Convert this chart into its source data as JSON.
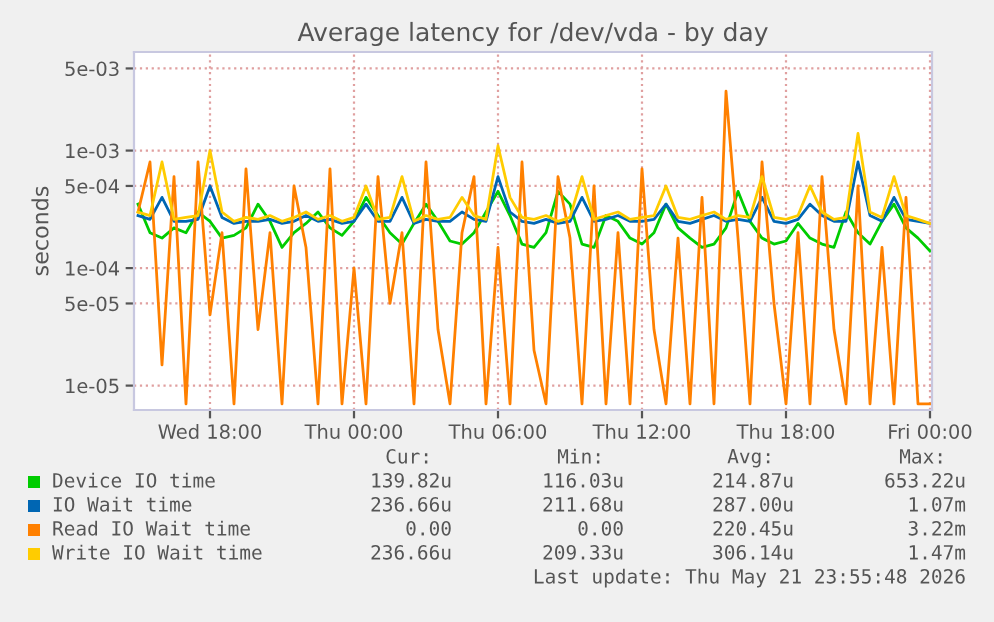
{
  "chart_data": {
    "type": "line",
    "title": "Average latency for /dev/vda - by day",
    "ylabel": "seconds",
    "log": "y",
    "ylim": [
      6.2e-06,
      0.0069
    ],
    "yticks": [
      {
        "value": 1e-05,
        "label": "1e-05"
      },
      {
        "value": 5e-05,
        "label": "5e-05"
      },
      {
        "value": 0.0001,
        "label": "1e-04"
      },
      {
        "value": 0.0005,
        "label": "5e-04"
      },
      {
        "value": 0.001,
        "label": "1e-03"
      },
      {
        "value": 0.005,
        "label": "5e-03"
      }
    ],
    "xlim": [
      "2026-05-20T14:50",
      "2026-05-22T00:05"
    ],
    "xticks": [
      {
        "value": "2026-05-20T18:00",
        "label": "Wed 18:00"
      },
      {
        "value": "2026-05-21T00:00",
        "label": "Thu 00:00"
      },
      {
        "value": "2026-05-21T06:00",
        "label": "Thu 06:00"
      },
      {
        "value": "2026-05-21T12:00",
        "label": "Thu 12:00"
      },
      {
        "value": "2026-05-21T18:00",
        "label": "Thu 18:00"
      },
      {
        "value": "2026-05-22T00:00",
        "label": "Fri 00:00"
      }
    ],
    "grid": true,
    "legend": "bottom",
    "line_style": "solid",
    "marker": "none",
    "x": [
      "2026-05-20T15:00",
      "2026-05-20T15:30",
      "2026-05-20T16:00",
      "2026-05-20T16:30",
      "2026-05-20T17:00",
      "2026-05-20T17:30",
      "2026-05-20T18:00",
      "2026-05-20T18:30",
      "2026-05-20T19:00",
      "2026-05-20T19:30",
      "2026-05-20T20:00",
      "2026-05-20T20:30",
      "2026-05-20T21:00",
      "2026-05-20T21:30",
      "2026-05-20T22:00",
      "2026-05-20T22:30",
      "2026-05-20T23:00",
      "2026-05-20T23:30",
      "2026-05-21T00:00",
      "2026-05-21T00:30",
      "2026-05-21T01:00",
      "2026-05-21T01:30",
      "2026-05-21T02:00",
      "2026-05-21T02:30",
      "2026-05-21T03:00",
      "2026-05-21T03:30",
      "2026-05-21T04:00",
      "2026-05-21T04:30",
      "2026-05-21T05:00",
      "2026-05-21T05:30",
      "2026-05-21T06:00",
      "2026-05-21T06:30",
      "2026-05-21T07:00",
      "2026-05-21T07:30",
      "2026-05-21T08:00",
      "2026-05-21T08:30",
      "2026-05-21T09:00",
      "2026-05-21T09:30",
      "2026-05-21T10:00",
      "2026-05-21T10:30",
      "2026-05-21T11:00",
      "2026-05-21T11:30",
      "2026-05-21T12:00",
      "2026-05-21T12:30",
      "2026-05-21T13:00",
      "2026-05-21T13:30",
      "2026-05-21T14:00",
      "2026-05-21T14:30",
      "2026-05-21T15:00",
      "2026-05-21T15:30",
      "2026-05-21T16:00",
      "2026-05-21T16:30",
      "2026-05-21T17:00",
      "2026-05-21T17:30",
      "2026-05-21T18:00",
      "2026-05-21T18:30",
      "2026-05-21T19:00",
      "2026-05-21T19:30",
      "2026-05-21T20:00",
      "2026-05-21T20:30",
      "2026-05-21T21:00",
      "2026-05-21T21:30",
      "2026-05-21T22:00",
      "2026-05-21T22:30",
      "2026-05-21T23:00",
      "2026-05-21T23:30",
      "2026-05-22T00:00"
    ],
    "series": [
      {
        "name": "Device IO time",
        "color": "#00cc00",
        "values": [
          0.00035,
          0.0002,
          0.00018,
          0.00022,
          0.0002,
          0.0003,
          0.00025,
          0.00018,
          0.00019,
          0.00022,
          0.00035,
          0.00025,
          0.00015,
          0.0002,
          0.00024,
          0.0003,
          0.00022,
          0.00019,
          0.00025,
          0.0004,
          0.00028,
          0.0002,
          0.00016,
          0.00024,
          0.00035,
          0.00025,
          0.00017,
          0.00016,
          0.0002,
          0.0003,
          0.00045,
          0.00028,
          0.00016,
          0.00015,
          0.0002,
          0.00045,
          0.00035,
          0.00016,
          0.00015,
          0.00028,
          0.00025,
          0.00018,
          0.00016,
          0.0002,
          0.00035,
          0.00022,
          0.00018,
          0.00015,
          0.00016,
          0.00022,
          0.00045,
          0.00025,
          0.00018,
          0.00016,
          0.00017,
          0.00024,
          0.00018,
          0.00016,
          0.00015,
          0.0003,
          0.0002,
          0.00016,
          0.00025,
          0.00035,
          0.00022,
          0.00018,
          0.00014
        ]
      },
      {
        "name": "IO Wait time",
        "color": "#0066b3",
        "values": [
          0.00028,
          0.00026,
          0.0004,
          0.00025,
          0.00025,
          0.00026,
          0.0005,
          0.00027,
          0.00024,
          0.00025,
          0.00025,
          0.00026,
          0.00024,
          0.00025,
          0.00028,
          0.00025,
          0.00026,
          0.00024,
          0.00025,
          0.00035,
          0.00025,
          0.00025,
          0.0004,
          0.00024,
          0.00026,
          0.00025,
          0.00025,
          0.0003,
          0.00026,
          0.00025,
          0.0006,
          0.0003,
          0.00025,
          0.00024,
          0.00026,
          0.00024,
          0.00025,
          0.0004,
          0.00025,
          0.00026,
          0.00028,
          0.00025,
          0.00025,
          0.00026,
          0.00035,
          0.00025,
          0.00024,
          0.00026,
          0.00028,
          0.00025,
          0.00026,
          0.00025,
          0.0004,
          0.00025,
          0.00024,
          0.00026,
          0.00035,
          0.00028,
          0.00025,
          0.00025,
          0.0008,
          0.00028,
          0.00025,
          0.0004,
          0.00026,
          0.00025,
          0.00024
        ]
      },
      {
        "name": "Read IO Wait time",
        "color": "#ff8000",
        "values": [
          0.0003,
          0.0008,
          1.5e-05,
          0.0006,
          7e-06,
          0.0008,
          4e-05,
          0.0002,
          7e-06,
          0.0007,
          3e-05,
          0.0002,
          7e-06,
          0.0005,
          0.00015,
          7e-06,
          0.0007,
          7e-06,
          0.0001,
          7e-06,
          0.0006,
          5e-05,
          0.0002,
          7e-06,
          0.0008,
          3e-05,
          7e-06,
          0.0002,
          0.0006,
          7e-06,
          0.00015,
          7e-06,
          0.0008,
          2e-05,
          7e-06,
          0.0006,
          0.00018,
          7e-06,
          0.0005,
          7e-06,
          0.0002,
          7e-06,
          0.0007,
          3e-05,
          7e-06,
          0.00018,
          7e-06,
          0.0004,
          7e-06,
          0.0032,
          0.00018,
          7e-06,
          0.0008,
          5e-05,
          7e-06,
          0.0002,
          7e-06,
          0.0006,
          3e-05,
          7e-06,
          0.0005,
          7e-06,
          0.00015,
          7e-06,
          0.0004,
          7e-06,
          7e-06
        ]
      },
      {
        "name": "Write IO Wait time",
        "color": "#ffcc00",
        "values": [
          0.0003,
          0.00028,
          0.0008,
          0.00026,
          0.00027,
          0.00028,
          0.001,
          0.0003,
          0.00025,
          0.00027,
          0.00026,
          0.00028,
          0.00025,
          0.00027,
          0.0003,
          0.00026,
          0.00028,
          0.00025,
          0.00027,
          0.0005,
          0.00026,
          0.00027,
          0.0006,
          0.00025,
          0.00028,
          0.00026,
          0.00027,
          0.0004,
          0.00028,
          0.00026,
          0.0011,
          0.0004,
          0.00027,
          0.00026,
          0.00028,
          0.00025,
          0.00027,
          0.0006,
          0.00026,
          0.00028,
          0.0003,
          0.00026,
          0.00027,
          0.00028,
          0.0005,
          0.00027,
          0.00026,
          0.00028,
          0.0003,
          0.00026,
          0.00028,
          0.00027,
          0.0006,
          0.00027,
          0.00026,
          0.00028,
          0.0005,
          0.0003,
          0.00026,
          0.00027,
          0.0014,
          0.0003,
          0.00027,
          0.0006,
          0.00028,
          0.00026,
          0.00024
        ]
      }
    ],
    "annotations": [
      "Cur:",
      "Min:",
      "Avg:",
      "Max:",
      "139.82u",
      "116.03u",
      "214.87u",
      "653.22u",
      "236.66u",
      "211.68u",
      "287.00u",
      "1.07m",
      "0.00",
      "0.00",
      "220.45u",
      "3.22m",
      "236.66u",
      "209.33u",
      "306.14u",
      "1.47m",
      "Last update: Thu May 21 23:55:48 2026"
    ]
  }
}
